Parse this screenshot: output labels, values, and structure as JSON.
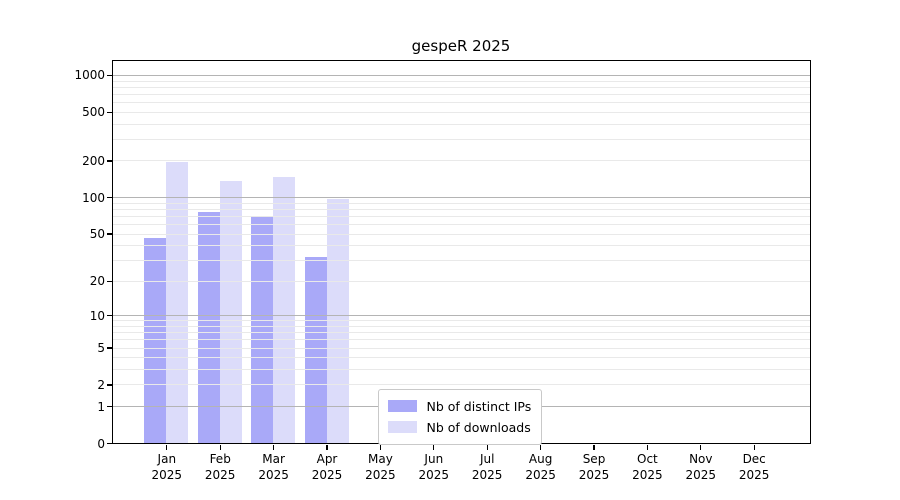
{
  "chart_data": {
    "type": "bar",
    "title": "gespeR 2025",
    "categories": [
      "Jan",
      "Feb",
      "Mar",
      "Apr",
      "May",
      "Jun",
      "Jul",
      "Aug",
      "Sep",
      "Oct",
      "Nov",
      "Dec"
    ],
    "category_sublabel": "2025",
    "series": [
      {
        "name": "Nb of distinct IPs",
        "color": "#a9a9f8",
        "values": [
          46,
          75,
          70,
          32,
          0,
          0,
          0,
          0,
          0,
          0,
          0,
          0
        ]
      },
      {
        "name": "Nb of downloads",
        "color": "#dcdcfa",
        "values": [
          196,
          137,
          146,
          97,
          0,
          0,
          0,
          0,
          0,
          0,
          0,
          0
        ]
      }
    ],
    "y_axis": {
      "scale": "log10(value+1)",
      "ticks": [
        0,
        1,
        2,
        5,
        10,
        20,
        50,
        100,
        200,
        500,
        1000
      ],
      "max": 1312
    },
    "grid": {
      "orientation": "horizontal",
      "major_values": [
        1,
        10,
        100,
        1000
      ],
      "minor_color": "#e9e9e9",
      "major_color": "#b4b4b4",
      "drawn_above_bars": true
    },
    "legend": {
      "position": "inside-bottom-center"
    },
    "xlabel": "",
    "ylabel": ""
  },
  "colors": {
    "background": "#ffffff",
    "axis": "#000000",
    "bar_distinct_ips": "#a9a9f8",
    "bar_downloads": "#dcdcfa"
  }
}
